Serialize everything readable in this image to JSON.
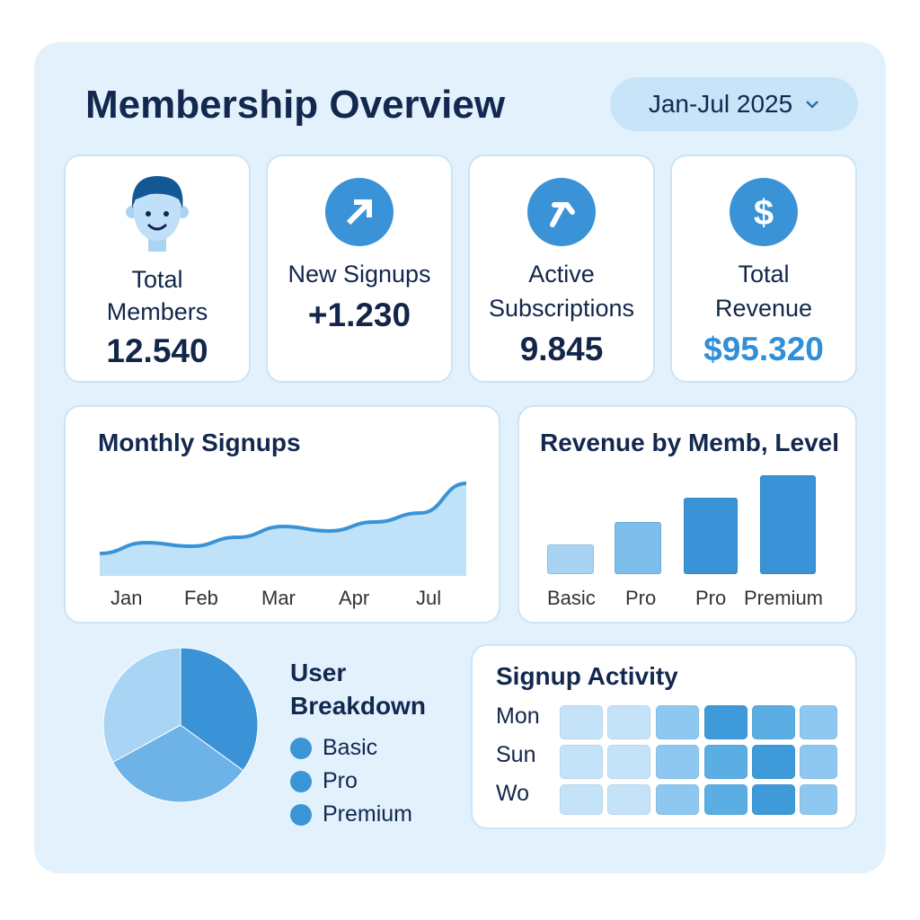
{
  "header": {
    "title": "Membership Overview",
    "date_range": "Jan-Jul 2025",
    "chevron_icon": "chevron-down-icon"
  },
  "kpis": [
    {
      "icon": "user-face-icon",
      "label1": "Total",
      "label2": "Members",
      "value": "12.540"
    },
    {
      "icon": "arrow-up-right-icon",
      "label1": "New Signups",
      "value": "+1.230"
    },
    {
      "icon": "hammer-icon",
      "label1": "Active",
      "label2": "Subscriptions",
      "value": "9.845"
    },
    {
      "icon": "dollar-icon",
      "label1": "Total",
      "label2": "Revenue",
      "value": "$95.320",
      "value_color": "#2f8fd8"
    }
  ],
  "chart_data": [
    {
      "type": "area",
      "title": "Monthly Signups",
      "x_labels": [
        "Jan",
        "Feb",
        "Mar",
        "Apr",
        "Jul"
      ],
      "values": [
        10,
        22,
        18,
        28,
        40,
        35,
        45,
        55,
        88
      ],
      "color": "#3a93d6"
    },
    {
      "type": "bar",
      "title": "Revenue by Memb, Level",
      "categories": [
        "Basic",
        "Pro",
        "Pro",
        "Premium"
      ],
      "values": [
        30,
        53,
        77,
        100
      ],
      "colors": [
        "#a8d3f3",
        "#7dbdea",
        "#3a93d6",
        "#3a93d6"
      ]
    },
    {
      "type": "pie",
      "title": "User Breakdown",
      "title1": "User",
      "title2": "Breakdown",
      "legend": [
        "Basic",
        "Pro",
        "Premium"
      ],
      "values": [
        35,
        32,
        33
      ],
      "colors": [
        "#3a93d6",
        "#6db3e8",
        "#a9d4f3"
      ]
    },
    {
      "type": "heatmap",
      "title": "Signup Activity",
      "rows": [
        "Mon",
        "Sun",
        "Wo"
      ],
      "values": [
        [
          1,
          1,
          2,
          4,
          3,
          2
        ],
        [
          1,
          1,
          2,
          3,
          4,
          2
        ],
        [
          1,
          1,
          2,
          3,
          4,
          2
        ]
      ],
      "colors": [
        "#c5e3f8",
        "#8ec8f0",
        "#5aaee4",
        "#3e9ad9",
        "#7bbbe9"
      ]
    }
  ]
}
